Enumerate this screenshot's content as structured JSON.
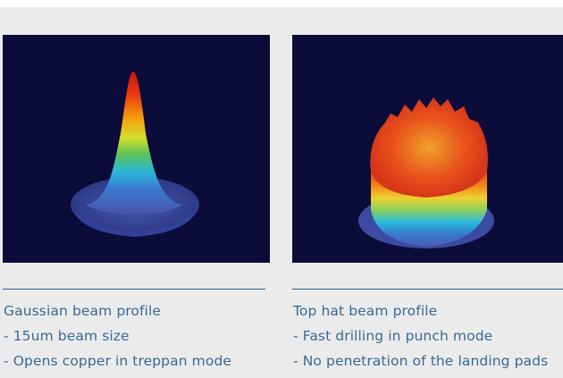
{
  "background_color": "#ebebeb",
  "accent_color": "#2c5b8a",
  "text_color": "#3a6a95",
  "figure_background": "#0c0c3a",
  "left": {
    "title": "Gaussian beam profile",
    "bullets": [
      "- 15um beam size",
      "- Opens copper in treppan mode"
    ]
  },
  "right": {
    "title": "Top hat beam profile",
    "bullets": [
      "- Fast drilling in punch mode",
      "- No penetration of the landing pads"
    ]
  }
}
